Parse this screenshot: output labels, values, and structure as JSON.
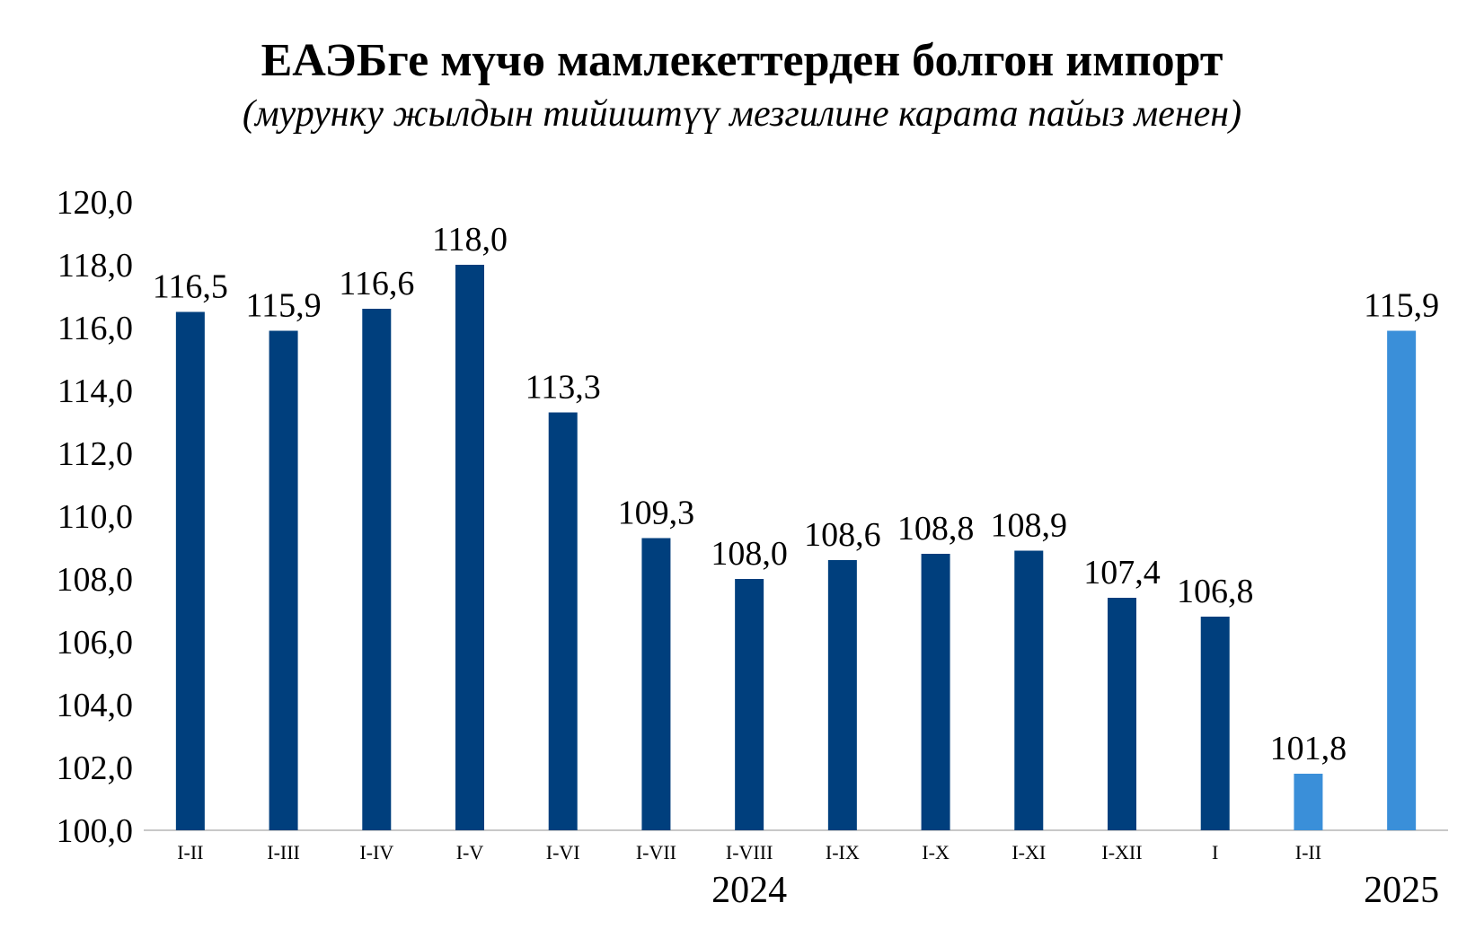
{
  "chart_data": {
    "type": "bar",
    "title": "ЕАЭБге мүчө мамлекеттерден болгон импорт",
    "subtitle": "(мурунку жылдын тийиштүү мезгилине карата пайыз менен)",
    "categories": [
      "I-II",
      "I-III",
      "I-IV",
      "I-V",
      "I-VI",
      "I-VII",
      "I-VIII",
      "I-IX",
      "I-X",
      "I-XI",
      "I-XII",
      "I",
      "I-II",
      ""
    ],
    "values": [
      116.5,
      115.9,
      116.6,
      118.0,
      113.3,
      109.3,
      108.0,
      108.6,
      108.8,
      108.9,
      107.4,
      106.8,
      101.8,
      115.9
    ],
    "value_labels": [
      "116,5",
      "115,9",
      "116,6",
      "118,0",
      "113,3",
      "109,3",
      "108,0",
      "108,6",
      "108,8",
      "108,9",
      "107,4",
      "106,8",
      "101,8",
      "115,9"
    ],
    "bar_colors": [
      "#003f7d",
      "#003f7d",
      "#003f7d",
      "#003f7d",
      "#003f7d",
      "#003f7d",
      "#003f7d",
      "#003f7d",
      "#003f7d",
      "#003f7d",
      "#003f7d",
      "#003f7d",
      "#3a8fd9",
      "#3a8fd9"
    ],
    "year_labels": [
      "2024",
      "2025"
    ],
    "ylim": [
      100,
      120
    ],
    "yticks": [
      "100,0",
      "102,0",
      "104,0",
      "106,0",
      "108,0",
      "110,0",
      "112,0",
      "114,0",
      "116,0",
      "118,0",
      "120,0"
    ],
    "xlabel": "",
    "ylabel": "",
    "grid": false,
    "legend": "none"
  }
}
